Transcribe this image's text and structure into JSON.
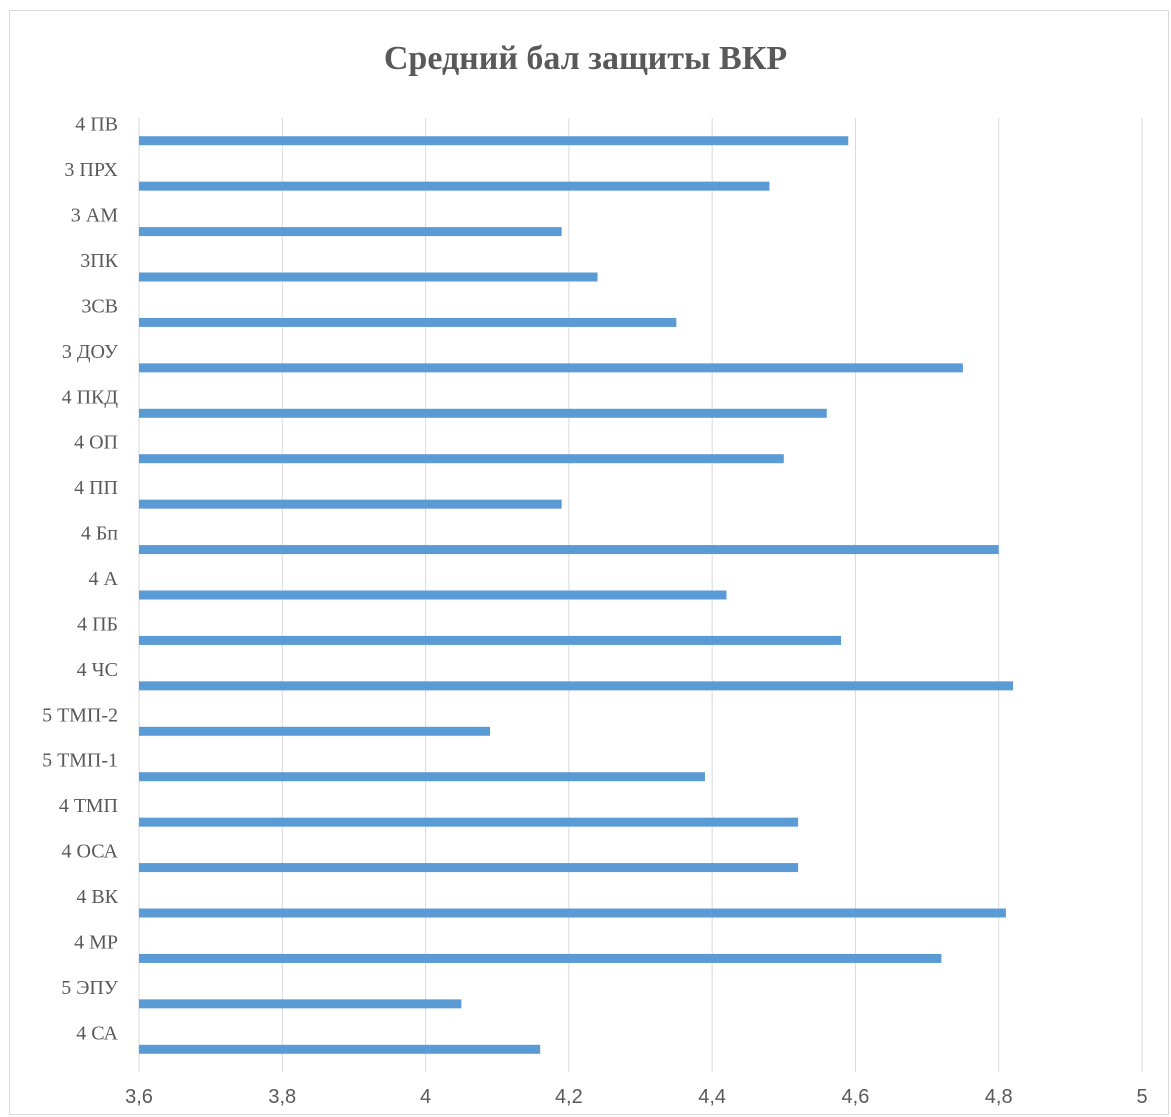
{
  "chart_data": {
    "type": "bar",
    "orientation": "horizontal",
    "title": "Средний бал защиты ВКР",
    "categories": [
      "4 ПВ",
      "3 ПРХ",
      "3 АМ",
      "3ПК",
      "3СВ",
      "3 ДОУ",
      "4 ПКД",
      "4 ОП",
      "4 ПП",
      "4 Бп",
      "4 А",
      "4 ПБ",
      "4 ЧС",
      "5 ТМП-2",
      "5 ТМП-1",
      "4 ТМП",
      "4 ОСА",
      "4 ВК",
      "4 МР",
      "5 ЭПУ",
      "4 СА"
    ],
    "values": [
      4.59,
      4.48,
      4.19,
      4.24,
      4.35,
      4.75,
      4.56,
      4.5,
      4.19,
      4.8,
      4.42,
      4.58,
      4.82,
      4.09,
      4.39,
      4.52,
      4.52,
      4.81,
      4.72,
      4.05,
      4.16
    ],
    "xlim": [
      3.6,
      5.0
    ],
    "xticks": [
      "3,6",
      "3,8",
      "4",
      "4,2",
      "4,4",
      "4,6",
      "4,8",
      "5"
    ],
    "xlabel": "",
    "ylabel": "",
    "grid": "vertical",
    "legend": "none",
    "bar_color": "#5b9bd5",
    "grid_color": "#d9d9d9"
  }
}
